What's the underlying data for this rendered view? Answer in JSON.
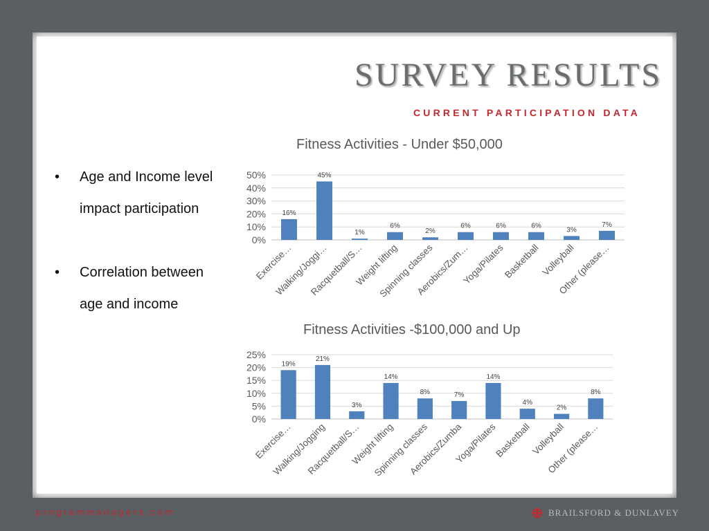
{
  "slide": {
    "title": "SURVEY RESULTS",
    "subtitle": "CURRENT PARTICIPATION DATA"
  },
  "bullets": [
    "Age and Income level impact participation",
    "Correlation between age and income"
  ],
  "footer": {
    "website": "programmanagers.com",
    "logo_text": "BRAILSFORD & DUNLAVEY"
  },
  "colors": {
    "background": "#5a5f63",
    "bar": "#4f81bd",
    "accent": "#c0282d"
  },
  "chart_data": [
    {
      "type": "bar",
      "title": "Fitness Activities - Under $50,000",
      "categories": [
        "Exercise…",
        "Walking/Joggi…",
        "Racquetball/S…",
        "Weight lifting",
        "Spinning classes",
        "Aerobics/Zum…",
        "Yoga/Pilates",
        "Basketball",
        "Volleyball",
        "Other (please…"
      ],
      "values": [
        16,
        45,
        1,
        6,
        2,
        6,
        6,
        6,
        3,
        7
      ],
      "data_labels": [
        "16%",
        "45%",
        "1%",
        "6%",
        "2%",
        "6%",
        "6%",
        "6%",
        "3%",
        "7%"
      ],
      "ylim": [
        0,
        50
      ],
      "yticks": [
        "0%",
        "10%",
        "20%",
        "30%",
        "40%",
        "50%"
      ],
      "grid": true,
      "xlabel": "",
      "ylabel": ""
    },
    {
      "type": "bar",
      "title": "Fitness Activities -$100,000 and Up",
      "categories": [
        "Exercise…",
        "Walking/Jogging",
        "Racquetball/S…",
        "Weight lifting",
        "Spinning classes",
        "Aerobics/Zumba",
        "Yoga/Pilates",
        "Basketball",
        "Volleyball",
        "Other (please…"
      ],
      "values": [
        19,
        21,
        3,
        14,
        8,
        7,
        14,
        4,
        2,
        8
      ],
      "data_labels": [
        "19%",
        "21%",
        "3%",
        "14%",
        "8%",
        "7%",
        "14%",
        "4%",
        "2%",
        "8%"
      ],
      "ylim": [
        0,
        25
      ],
      "yticks": [
        "0%",
        "5%",
        "10%",
        "15%",
        "20%",
        "25%"
      ],
      "grid": true,
      "xlabel": "",
      "ylabel": ""
    }
  ]
}
